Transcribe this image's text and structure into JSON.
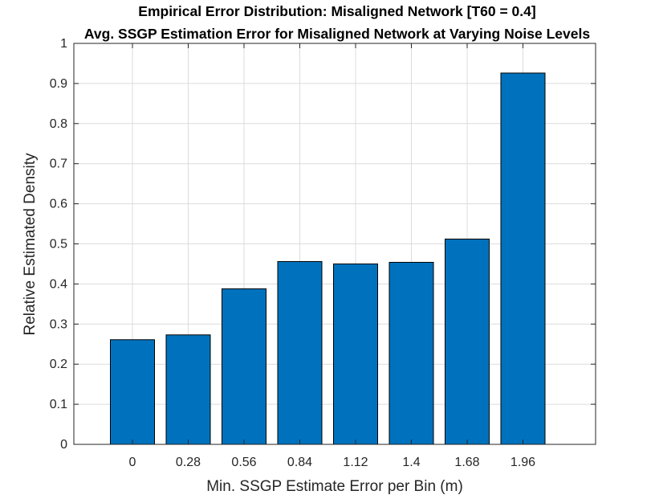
{
  "chart_data": {
    "type": "bar",
    "title": "Empirical Error Distribution: Misaligned Network [T60 = 0.4]",
    "subtitle": "Avg. SSGP Estimation Error for Misaligned Network at Varying Noise Levels",
    "xlabel": "Min. SSGP Estimate Error per Bin (m)",
    "ylabel": "Relative Estimated Density",
    "categories": [
      "0",
      "0.28",
      "0.56",
      "0.84",
      "1.12",
      "1.4",
      "1.68",
      "1.96"
    ],
    "values": [
      0.261,
      0.273,
      0.388,
      0.456,
      0.45,
      0.454,
      0.512,
      0.926
    ],
    "ylim": [
      0,
      1
    ],
    "yticks": [
      "0",
      "0.1",
      "0.2",
      "0.3",
      "0.4",
      "0.5",
      "0.6",
      "0.7",
      "0.8",
      "0.9",
      "1"
    ],
    "grid": true,
    "bar_color": "#0072BD",
    "bar_edge_color": "#000000"
  }
}
